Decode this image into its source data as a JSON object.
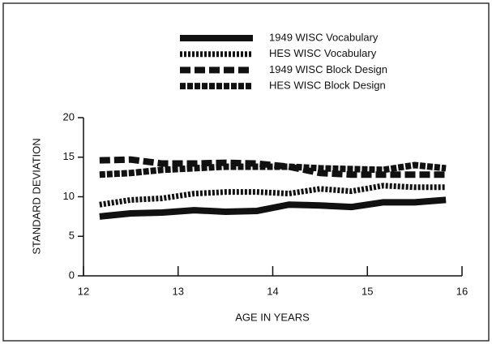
{
  "chart_data": {
    "type": "line",
    "x": [
      12.17,
      12.5,
      12.83,
      13.17,
      13.5,
      13.83,
      14.17,
      14.5,
      14.83,
      15.17,
      15.5,
      15.83
    ],
    "series": [
      {
        "name": "1949 WISC Vocabulary",
        "color": "#111111",
        "dash": "solid",
        "values": [
          7.5,
          7.9,
          8.0,
          8.3,
          8.1,
          8.2,
          9.0,
          8.9,
          8.7,
          9.3,
          9.3,
          9.6
        ]
      },
      {
        "name": "HES WISC Vocabulary",
        "color": "#111111",
        "dash": "dotted",
        "values": [
          9.0,
          9.6,
          9.8,
          10.4,
          10.6,
          10.6,
          10.4,
          11.0,
          10.7,
          11.4,
          11.2,
          11.2
        ]
      },
      {
        "name": "1949 WISC Block Design",
        "color": "#111111",
        "dash": "dashed",
        "values": [
          14.6,
          14.7,
          14.2,
          14.2,
          14.3,
          14.2,
          13.8,
          13.0,
          12.8,
          12.8,
          12.8,
          12.8
        ]
      },
      {
        "name": "HES WISC Block Design",
        "color": "#111111",
        "dash": "hatched",
        "values": [
          12.8,
          13.0,
          13.4,
          13.6,
          13.8,
          13.8,
          13.8,
          13.6,
          13.5,
          13.4,
          14.0,
          13.6
        ]
      }
    ],
    "x_label": "AGE IN YEARS",
    "y_label": "STANDARD DEVIATION",
    "xlim": [
      12,
      16
    ],
    "xticks": [
      12,
      13,
      14,
      15,
      16
    ],
    "ylim": [
      0,
      20
    ],
    "yticks": [
      0,
      5,
      10,
      15,
      20
    ]
  }
}
